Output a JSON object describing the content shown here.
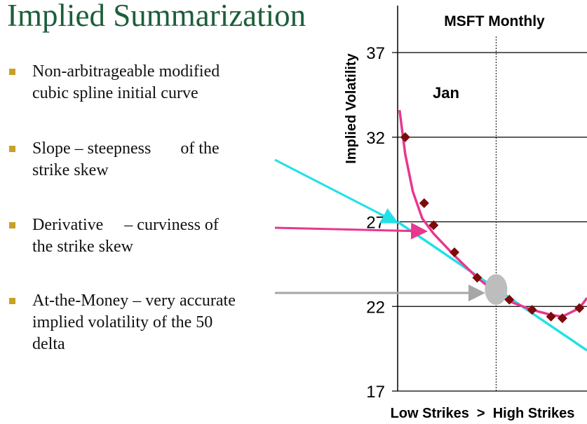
{
  "slide": {
    "title": "Implied Summarization",
    "bullets": [
      {
        "lines": [
          "Non-arbitrageable  modified",
          "cubic spline  initial curve"
        ]
      },
      {
        "lines": [
          "Slope – steepness       of the",
          "strike skew"
        ]
      },
      {
        "lines": [
          "Derivative     – curviness of",
          "the strike skew"
        ]
      },
      {
        "lines": [
          "At-the-Money – very accurate",
          "implied volatility of the 50",
          "delta"
        ]
      }
    ],
    "colors": {
      "title": "#1d5e3a",
      "bullet_marker": "#c8a02a",
      "slope_arrow": "#22e0e8",
      "derivative_arrow": "#e8378f",
      "atm_arrow": "#a6a6a6"
    }
  },
  "chart_data": {
    "type": "scatter",
    "title": "MSFT Monthly",
    "annotation": "Jan",
    "xlabel": "Low Strikes  >  High Strikes",
    "ylabel": "Implied Volatility",
    "xlim": [
      0,
      100
    ],
    "ylim": [
      17,
      37
    ],
    "yticks": [
      "17",
      "22",
      "27",
      "32",
      "37"
    ],
    "grid": true,
    "atm_x": 52,
    "atm_y": 23.0,
    "series": [
      {
        "type": "scatter",
        "color": "#7b0a0a",
        "marker": "diamond",
        "x": [
          4,
          14,
          19,
          30,
          42,
          59,
          71,
          81,
          87,
          96
        ],
        "y": [
          32.0,
          28.1,
          26.8,
          25.2,
          23.7,
          22.4,
          21.8,
          21.4,
          21.3,
          21.9
        ]
      },
      {
        "type": "line",
        "color": "#e8378f",
        "x": [
          1,
          4,
          8,
          13,
          19,
          30,
          42,
          52,
          59,
          71,
          81,
          87,
          96,
          100
        ],
        "y": [
          33.6,
          31.0,
          28.8,
          27.2,
          26.3,
          25.0,
          23.7,
          22.8,
          22.3,
          21.8,
          21.5,
          21.4,
          21.9,
          22.5
        ]
      },
      {
        "type": "line",
        "color": "#22e0e8",
        "x": [
          0,
          100
        ],
        "y": [
          27.0,
          19.4
        ]
      }
    ]
  }
}
